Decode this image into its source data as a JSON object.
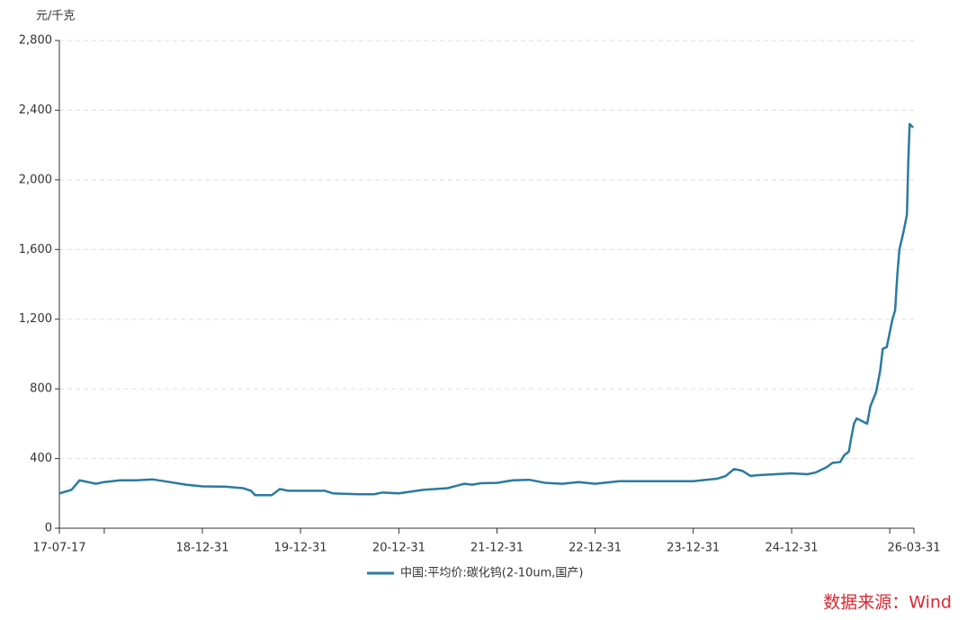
{
  "chart_data": {
    "type": "line",
    "y_unit": "元/千克",
    "source": "数据来源：Wind",
    "x": [
      "17-07-17",
      "17-08-31",
      "17-09-30",
      "17-10-31",
      "17-11-30",
      "17-12-31",
      "18-02-28",
      "18-04-30",
      "18-06-30",
      "18-08-31",
      "18-10-31",
      "18-12-31",
      "19-03-31",
      "19-05-31",
      "19-06-30",
      "19-07-15",
      "19-09-15",
      "19-10-15",
      "19-11-15",
      "19-12-31",
      "20-03-31",
      "20-04-30",
      "20-07-31",
      "20-09-30",
      "20-10-31",
      "20-12-31",
      "21-03-31",
      "21-06-30",
      "21-08-31",
      "21-09-30",
      "21-10-31",
      "21-12-31",
      "22-02-28",
      "22-04-30",
      "22-06-30",
      "22-08-31",
      "22-10-31",
      "22-12-31",
      "23-03-31",
      "23-05-31",
      "23-08-31",
      "23-12-31",
      "24-03-31",
      "24-04-30",
      "24-05-31",
      "24-06-30",
      "24-07-31",
      "24-08-31",
      "24-10-31",
      "24-12-31",
      "25-02-28",
      "25-03-31",
      "25-05-10",
      "25-06-01",
      "25-06-30",
      "25-07-15",
      "25-08-01",
      "25-08-10",
      "25-08-20",
      "25-08-30",
      "25-10-08",
      "25-10-20",
      "25-11-10",
      "25-11-25",
      "25-12-05",
      "25-12-20",
      "26-01-10",
      "26-01-20",
      "26-01-28",
      "26-02-05",
      "26-02-20",
      "26-03-05",
      "26-03-10",
      "26-03-15",
      "26-03-28"
    ],
    "series": [
      {
        "name": "中国:平均价:碳化钨(2-10um,国产)",
        "color": "#2a7aa0",
        "values": [
          200,
          220,
          275,
          265,
          255,
          265,
          275,
          275,
          280,
          265,
          250,
          240,
          238,
          230,
          215,
          190,
          190,
          225,
          215,
          215,
          215,
          200,
          195,
          195,
          205,
          200,
          220,
          230,
          255,
          250,
          258,
          260,
          275,
          278,
          260,
          255,
          265,
          255,
          270,
          270,
          270,
          270,
          285,
          300,
          340,
          330,
          300,
          305,
          310,
          315,
          310,
          320,
          350,
          375,
          380,
          420,
          440,
          520,
          600,
          630,
          600,
          700,
          780,
          900,
          1030,
          1040,
          1200,
          1250,
          1450,
          1600,
          1700,
          1800,
          2100,
          2320,
          2300
        ]
      }
    ],
    "xlim": [
      "17-07-17",
      "26-03-31"
    ],
    "xticks": [
      "17-07-17",
      {
        "value": "17-12-31",
        "label": null
      },
      "18-12-31",
      "19-12-31",
      "20-12-31",
      "21-12-31",
      "22-12-31",
      "23-12-31",
      "24-12-31",
      {
        "value": "25-12-31",
        "label": null
      },
      "26-03-31"
    ],
    "ylim": [
      0,
      2800
    ],
    "yticks": [
      0,
      400,
      800,
      {
        "value": 1200,
        "label": "1,200"
      },
      {
        "value": 1600,
        "label": "1,600"
      },
      {
        "value": 2000,
        "label": "2,000"
      },
      {
        "value": 2400,
        "label": "2,400"
      },
      {
        "value": 2800,
        "label": "2,800"
      }
    ],
    "grid": true,
    "legend": "bottom"
  }
}
